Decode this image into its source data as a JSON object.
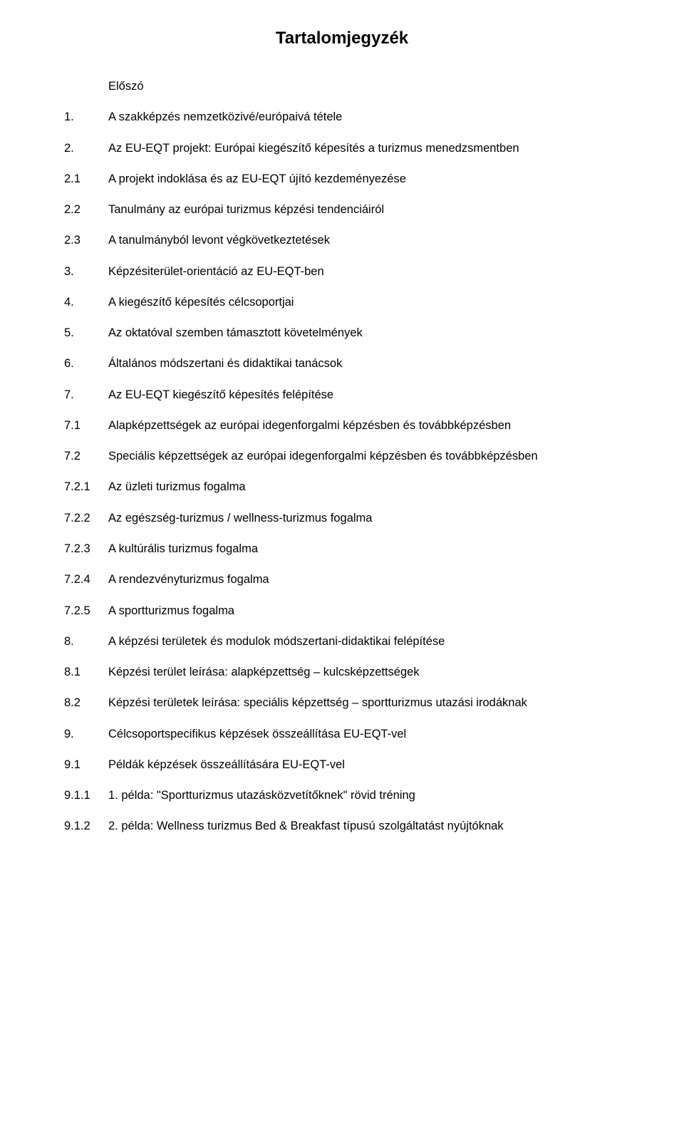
{
  "title": "Tartalomjegyzék",
  "items": [
    {
      "num": "",
      "text": "Előszó",
      "cls": "elo"
    },
    {
      "num": "1.",
      "text": "A szakképzés nemzetközivé/európaivá tétele"
    },
    {
      "num": "2.",
      "text": "Az EU-EQT projekt: Európai kiegészítő képesítés a turizmus menedzsmentben"
    },
    {
      "num": "2.1",
      "text": "A projekt indoklása és az EU-EQT újító kezdeményezése"
    },
    {
      "num": "2.2",
      "text": "Tanulmány az európai turizmus képzési tendenciáiról"
    },
    {
      "num": "2.3",
      "text": "A tanulmányból levont végkövetkeztetések"
    },
    {
      "num": "3.",
      "text": "Képzésiterület-orientáció az EU-EQT-ben"
    },
    {
      "num": "4.",
      "text": "A kiegészítő képesítés célcsoportjai"
    },
    {
      "num": "5.",
      "text": "Az oktatóval szemben támasztott követelmények"
    },
    {
      "num": "6.",
      "text": "Általános módszertani és didaktikai tanácsok"
    },
    {
      "num": "7.",
      "text": "Az EU-EQT  kiegészítő képesítés felépítése"
    },
    {
      "num": "7.1",
      "text": "Alapképzettségek az európai idegenforgalmi képzésben és továbbképzésben"
    },
    {
      "num": "7.2",
      "text": "Speciális képzettségek az európai idegenforgalmi képzésben és továbbképzésben"
    },
    {
      "num": "7.2.1",
      "text": "Az üzleti turizmus fogalma"
    },
    {
      "num": "7.2.2",
      "text": "Az egészség-turizmus / wellness-turizmus fogalma"
    },
    {
      "num": "7.2.3",
      "text": "A kultúrális turizmus fogalma"
    },
    {
      "num": "7.2.4",
      "text": "A rendezvényturizmus fogalma"
    },
    {
      "num": "7.2.5",
      "text": "A sportturizmus fogalma"
    },
    {
      "num": "8.",
      "text": "A képzési területek és modulok módszertani-didaktikai felépítése"
    },
    {
      "num": "8.1",
      "text": "Képzési terület leírása: alapképzettség – kulcsképzettségek"
    },
    {
      "num": "8.2",
      "text": "Képzési területek leírása: speciális képzettség – sportturizmus utazási irodáknak"
    },
    {
      "num": "9.",
      "text": "Célcsoportspecifikus képzések összeállítása EU-EQT-vel"
    },
    {
      "num": "9.1",
      "text": " Példák képzések összeállítására EU-EQT-vel"
    },
    {
      "num": "9.1.1",
      "text": "1. példa: \"Sportturizmus utazásközvetítőknek\" rövid tréning"
    },
    {
      "num": "9.1.2",
      "text": "2. példa: Wellness turizmus Bed & Breakfast típusú szolgáltatást nyújtóknak"
    }
  ]
}
